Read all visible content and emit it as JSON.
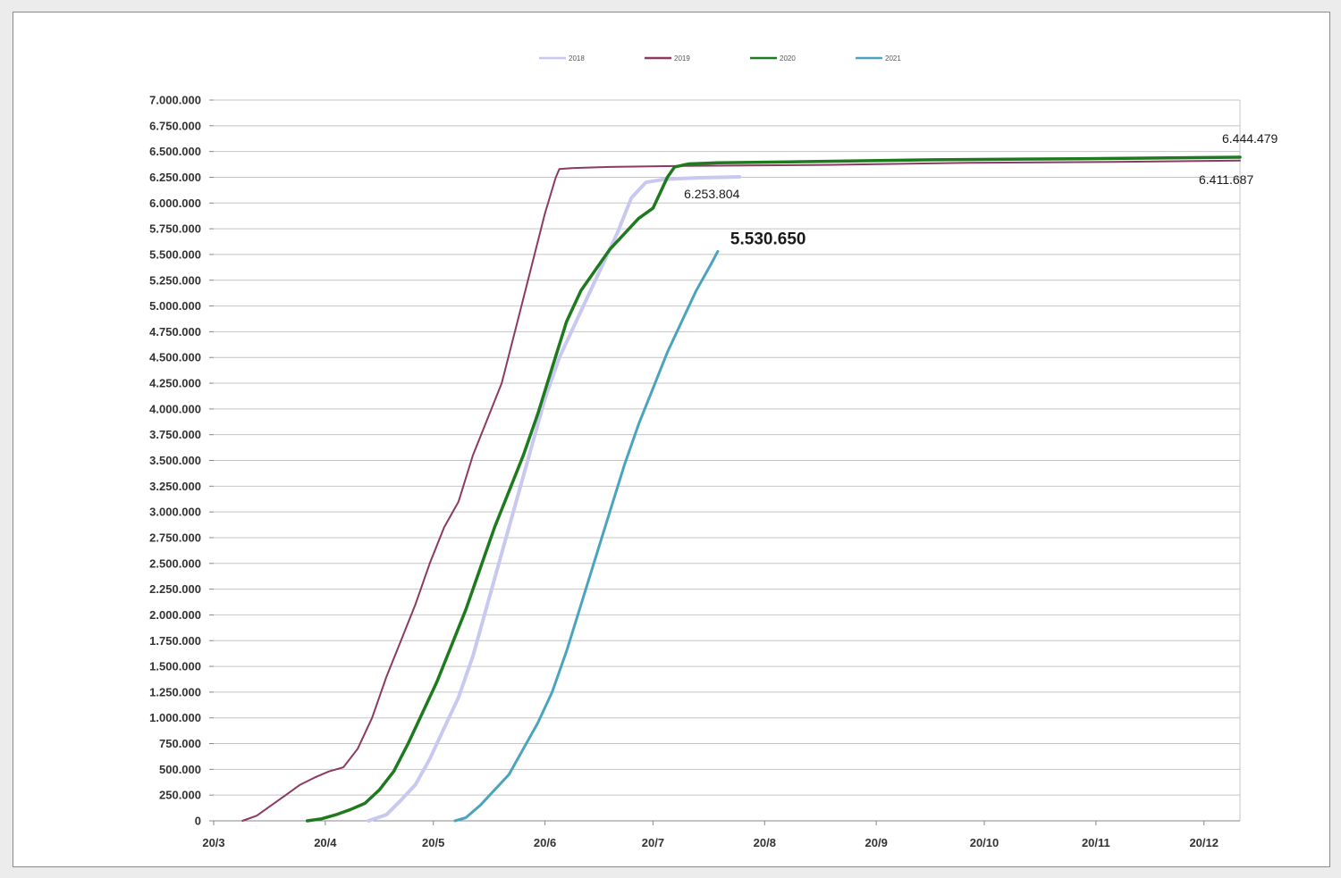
{
  "chart_data": {
    "type": "line",
    "title": "",
    "xlabel": "",
    "ylabel": "",
    "grid": true,
    "legend_position": "top",
    "xlim": [
      0,
      285
    ],
    "ylim": [
      0,
      7000000
    ],
    "x_unit": "days after 20/3",
    "x_ticks": [
      {
        "label": "20/3",
        "x": 0
      },
      {
        "label": "20/4",
        "x": 31
      },
      {
        "label": "20/5",
        "x": 61
      },
      {
        "label": "20/6",
        "x": 92
      },
      {
        "label": "20/7",
        "x": 122
      },
      {
        "label": "20/8",
        "x": 153
      },
      {
        "label": "20/9",
        "x": 184
      },
      {
        "label": "20/10",
        "x": 214
      },
      {
        "label": "20/11",
        "x": 245
      },
      {
        "label": "20/12",
        "x": 275
      }
    ],
    "y_ticks": [
      {
        "label": "0",
        "y": 0
      },
      {
        "label": "250.000",
        "y": 250000
      },
      {
        "label": "500.000",
        "y": 500000
      },
      {
        "label": "750.000",
        "y": 750000
      },
      {
        "label": "1.000.000",
        "y": 1000000
      },
      {
        "label": "1.250.000",
        "y": 1250000
      },
      {
        "label": "1.500.000",
        "y": 1500000
      },
      {
        "label": "1.750.000",
        "y": 1750000
      },
      {
        "label": "2.000.000",
        "y": 2000000
      },
      {
        "label": "2.250.000",
        "y": 2250000
      },
      {
        "label": "2.500.000",
        "y": 2500000
      },
      {
        "label": "2.750.000",
        "y": 2750000
      },
      {
        "label": "3.000.000",
        "y": 3000000
      },
      {
        "label": "3.250.000",
        "y": 3250000
      },
      {
        "label": "3.500.000",
        "y": 3500000
      },
      {
        "label": "3.750.000",
        "y": 3750000
      },
      {
        "label": "4.000.000",
        "y": 4000000
      },
      {
        "label": "4.250.000",
        "y": 4250000
      },
      {
        "label": "4.500.000",
        "y": 4500000
      },
      {
        "label": "4.750.000",
        "y": 4750000
      },
      {
        "label": "5.000.000",
        "y": 5000000
      },
      {
        "label": "5.250.000",
        "y": 5250000
      },
      {
        "label": "5.500.000",
        "y": 5500000
      },
      {
        "label": "5.750.000",
        "y": 5750000
      },
      {
        "label": "6.000.000",
        "y": 6000000
      },
      {
        "label": "6.250.000",
        "y": 6250000
      },
      {
        "label": "6.500.000",
        "y": 6500000
      },
      {
        "label": "6.750.000",
        "y": 6750000
      },
      {
        "label": "7.000.000",
        "y": 7000000
      }
    ],
    "series": [
      {
        "name": "2018",
        "color": "#c8c8f0",
        "width": 4,
        "points": [
          [
            43,
            0
          ],
          [
            48,
            60000
          ],
          [
            52,
            200000
          ],
          [
            56,
            350000
          ],
          [
            60,
            600000
          ],
          [
            64,
            900000
          ],
          [
            68,
            1200000
          ],
          [
            72,
            1600000
          ],
          [
            76,
            2100000
          ],
          [
            80,
            2600000
          ],
          [
            84,
            3100000
          ],
          [
            88,
            3600000
          ],
          [
            92,
            4100000
          ],
          [
            96,
            4500000
          ],
          [
            100,
            4800000
          ],
          [
            104,
            5100000
          ],
          [
            108,
            5400000
          ],
          [
            112,
            5700000
          ],
          [
            116,
            6050000
          ],
          [
            120,
            6200000
          ],
          [
            125,
            6230000
          ],
          [
            135,
            6245000
          ],
          [
            146,
            6253804
          ]
        ]
      },
      {
        "name": "2019",
        "color": "#8b3a62",
        "width": 2,
        "points": [
          [
            8,
            0
          ],
          [
            12,
            50000
          ],
          [
            16,
            150000
          ],
          [
            20,
            250000
          ],
          [
            24,
            350000
          ],
          [
            28,
            420000
          ],
          [
            32,
            480000
          ],
          [
            36,
            520000
          ],
          [
            40,
            700000
          ],
          [
            44,
            1000000
          ],
          [
            48,
            1400000
          ],
          [
            52,
            1750000
          ],
          [
            56,
            2100000
          ],
          [
            60,
            2500000
          ],
          [
            64,
            2850000
          ],
          [
            68,
            3100000
          ],
          [
            72,
            3550000
          ],
          [
            76,
            3900000
          ],
          [
            80,
            4250000
          ],
          [
            84,
            4800000
          ],
          [
            88,
            5350000
          ],
          [
            92,
            5900000
          ],
          [
            95,
            6250000
          ],
          [
            96,
            6330000
          ],
          [
            100,
            6340000
          ],
          [
            110,
            6350000
          ],
          [
            130,
            6360000
          ],
          [
            170,
            6370000
          ],
          [
            210,
            6390000
          ],
          [
            250,
            6400000
          ],
          [
            285,
            6411687
          ]
        ]
      },
      {
        "name": "2020",
        "color": "#1e7a1e",
        "width": 3.5,
        "points": [
          [
            26,
            0
          ],
          [
            30,
            20000
          ],
          [
            34,
            60000
          ],
          [
            38,
            110000
          ],
          [
            42,
            170000
          ],
          [
            46,
            300000
          ],
          [
            50,
            480000
          ],
          [
            54,
            750000
          ],
          [
            58,
            1050000
          ],
          [
            62,
            1350000
          ],
          [
            66,
            1700000
          ],
          [
            70,
            2050000
          ],
          [
            74,
            2450000
          ],
          [
            78,
            2850000
          ],
          [
            82,
            3200000
          ],
          [
            86,
            3550000
          ],
          [
            90,
            3950000
          ],
          [
            94,
            4400000
          ],
          [
            98,
            4850000
          ],
          [
            102,
            5150000
          ],
          [
            106,
            5350000
          ],
          [
            110,
            5550000
          ],
          [
            114,
            5700000
          ],
          [
            118,
            5850000
          ],
          [
            122,
            5950000
          ],
          [
            124,
            6100000
          ],
          [
            126,
            6250000
          ],
          [
            128,
            6350000
          ],
          [
            132,
            6380000
          ],
          [
            140,
            6390000
          ],
          [
            160,
            6400000
          ],
          [
            200,
            6420000
          ],
          [
            240,
            6430000
          ],
          [
            285,
            6444479
          ]
        ]
      },
      {
        "name": "2021",
        "color": "#4aa3bf",
        "width": 3,
        "points": [
          [
            67,
            0
          ],
          [
            70,
            30000
          ],
          [
            74,
            150000
          ],
          [
            78,
            300000
          ],
          [
            82,
            450000
          ],
          [
            86,
            700000
          ],
          [
            90,
            950000
          ],
          [
            94,
            1250000
          ],
          [
            98,
            1650000
          ],
          [
            102,
            2100000
          ],
          [
            106,
            2550000
          ],
          [
            110,
            3000000
          ],
          [
            114,
            3450000
          ],
          [
            118,
            3850000
          ],
          [
            122,
            4200000
          ],
          [
            126,
            4550000
          ],
          [
            130,
            4850000
          ],
          [
            134,
            5150000
          ],
          [
            138,
            5400000
          ],
          [
            140,
            5530650
          ]
        ]
      }
    ],
    "annotations": [
      {
        "text": "6.253.804",
        "series": "2018",
        "x": 146,
        "y": 6253804,
        "emphasis": false
      },
      {
        "text": "6.411.687",
        "series": "2019",
        "x": 285,
        "y": 6411687,
        "emphasis": false
      },
      {
        "text": "6.444.479",
        "series": "2020",
        "x": 285,
        "y": 6444479,
        "emphasis": false
      },
      {
        "text": "5.530.650",
        "series": "2021",
        "x": 140,
        "y": 5530650,
        "emphasis": true
      }
    ]
  }
}
